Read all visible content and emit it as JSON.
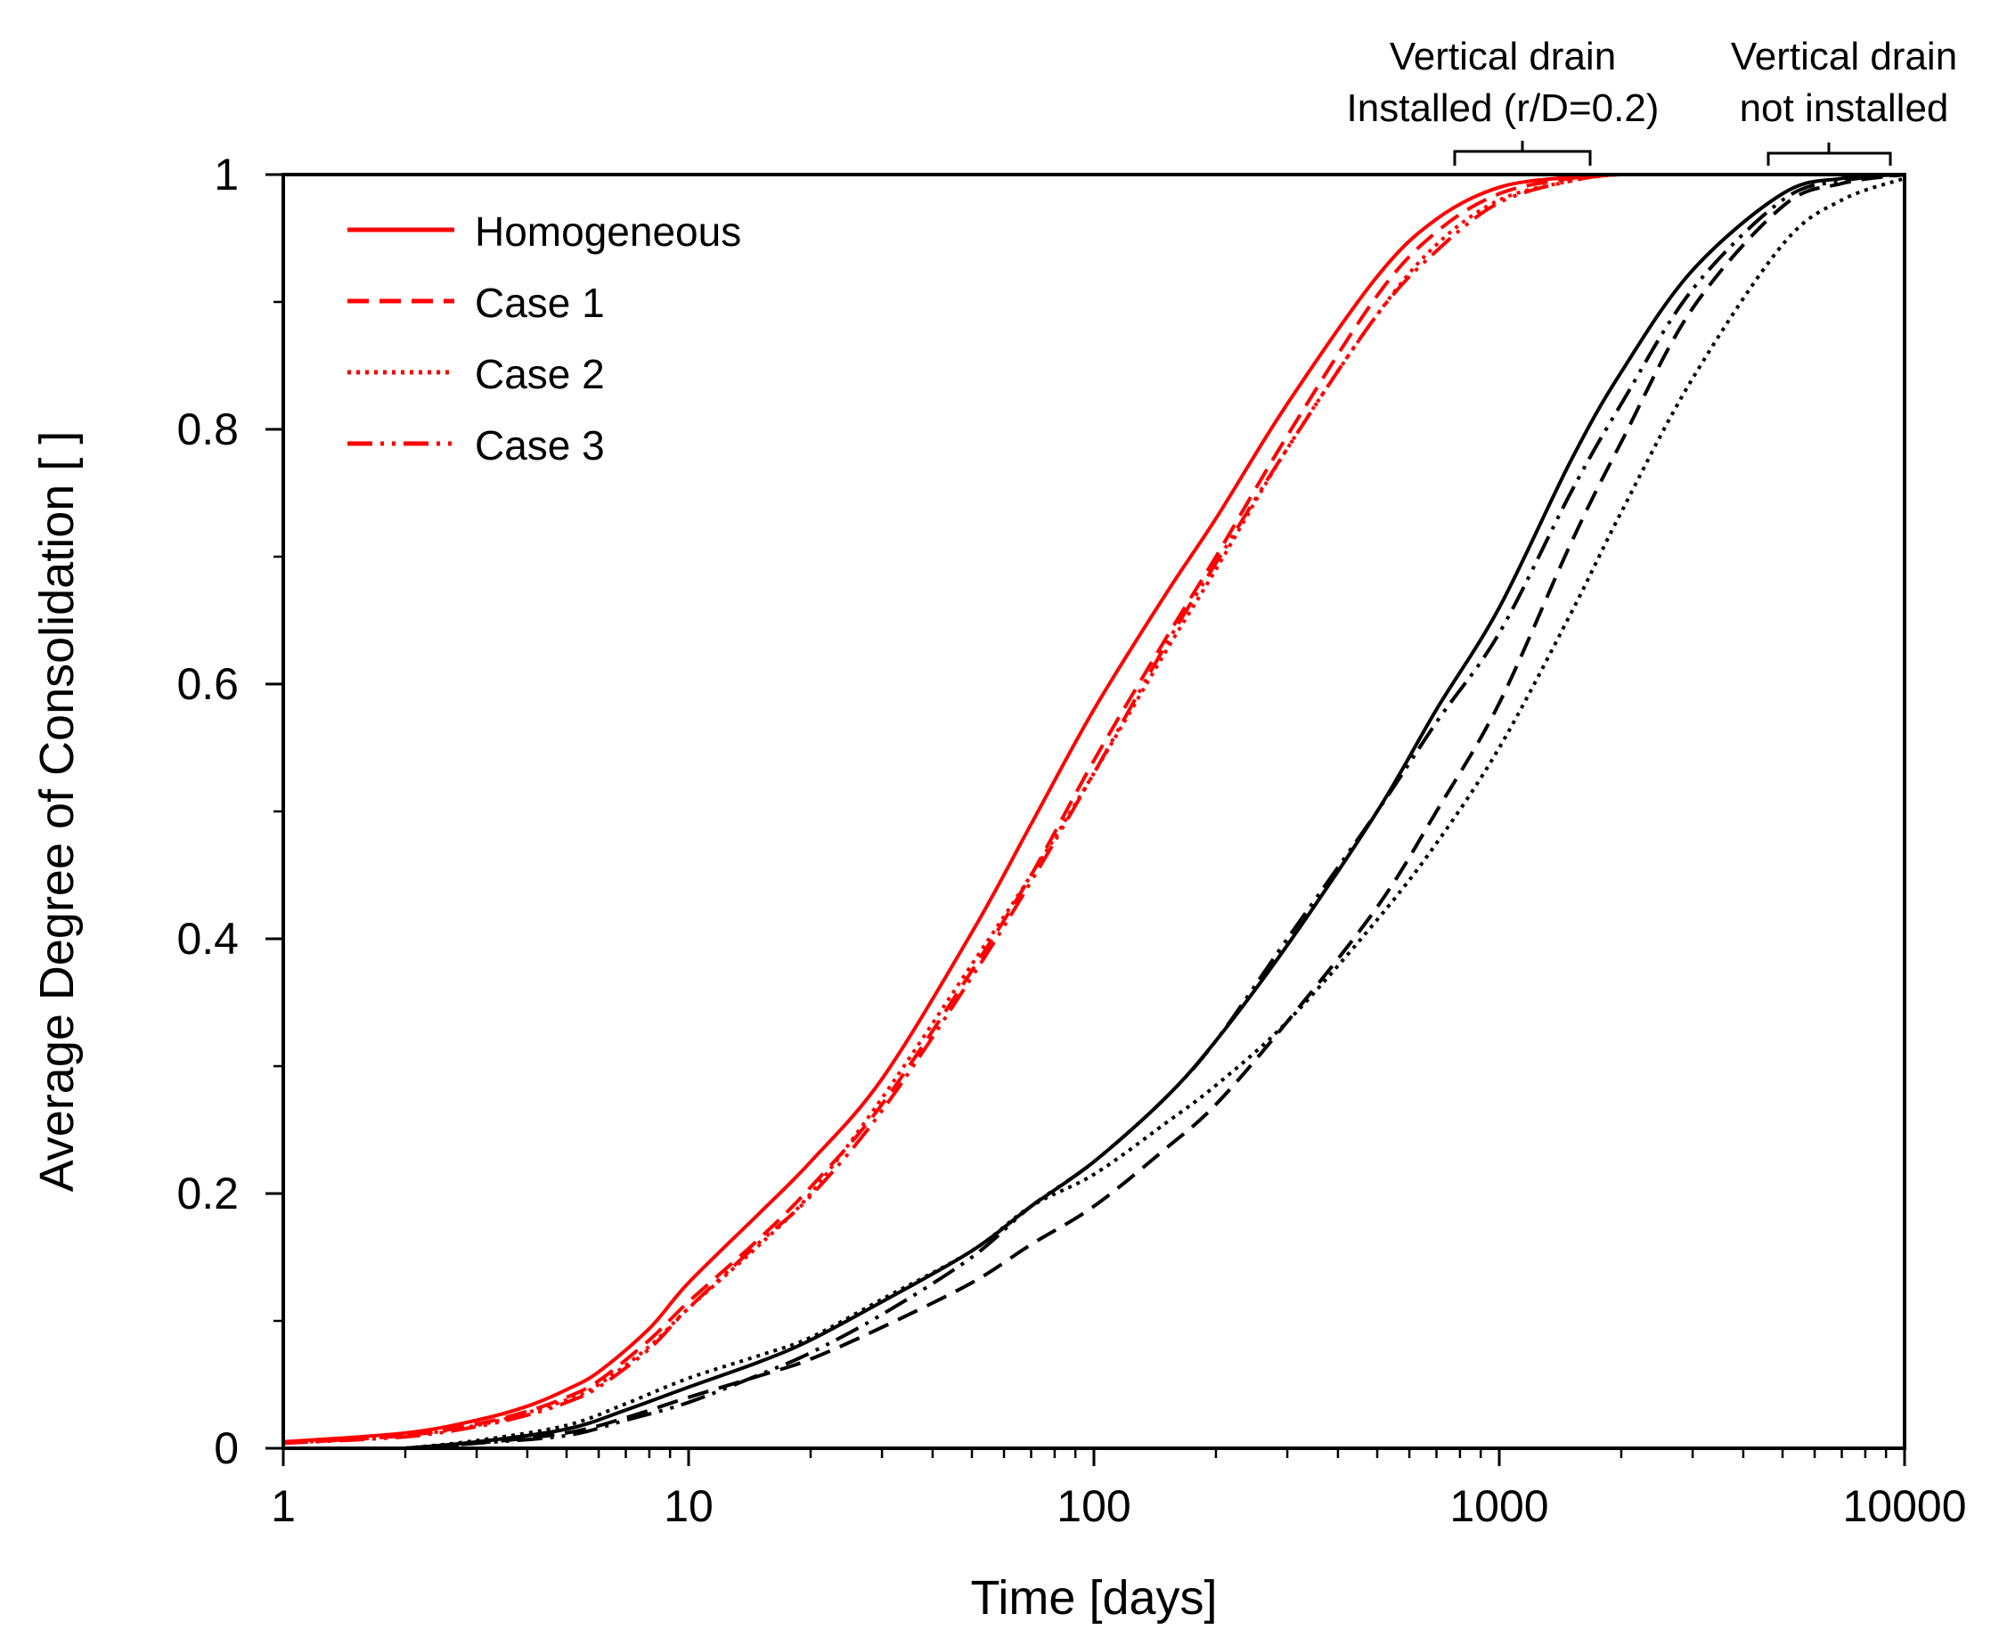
{
  "chart_data": {
    "type": "line",
    "title": "",
    "xlabel": "Time [days]",
    "ylabel": "Average Degree of Consolidation [ ]",
    "xscale": "log",
    "xlim": [
      1,
      10000
    ],
    "ylim": [
      0,
      1
    ],
    "grid": false,
    "legend_position": "top-left",
    "x_ticks": [
      1,
      10,
      100,
      1000,
      10000
    ],
    "x_tick_labels": [
      "1",
      "10",
      "100",
      "1000",
      "10000"
    ],
    "y_ticks": [
      0,
      0.2,
      0.4,
      0.6,
      0.8,
      1
    ],
    "y_tick_labels": [
      "0",
      "0.2",
      "0.4",
      "0.6",
      "0.8",
      "1"
    ],
    "series": [
      {
        "name": "Homogeneous",
        "group": "Vertical drain installed",
        "color": "#ff0000",
        "dash": "solid",
        "x": [
          1,
          2,
          3,
          4,
          5,
          6,
          8,
          10,
          15,
          20,
          30,
          50,
          70,
          100,
          150,
          200,
          300,
          500,
          700,
          1000,
          1500,
          2000,
          3000
        ],
        "y": [
          0.005,
          0.012,
          0.022,
          0.033,
          0.046,
          0.06,
          0.094,
          0.13,
          0.185,
          0.225,
          0.29,
          0.405,
          0.49,
          0.58,
          0.67,
          0.73,
          0.82,
          0.92,
          0.965,
          0.99,
          0.998,
          1.0,
          1.0
        ]
      },
      {
        "name": "Case 1",
        "group": "Vertical drain installed",
        "color": "#ff0000",
        "dash": "dashed",
        "x": [
          1,
          2,
          3,
          4,
          5,
          6,
          8,
          10,
          15,
          20,
          30,
          50,
          70,
          100,
          150,
          200,
          300,
          500,
          700,
          1000,
          1500,
          2000,
          3000
        ],
        "y": [
          0.004,
          0.01,
          0.019,
          0.029,
          0.04,
          0.053,
          0.085,
          0.115,
          0.165,
          0.205,
          0.27,
          0.375,
          0.45,
          0.54,
          0.635,
          0.7,
          0.795,
          0.905,
          0.955,
          0.985,
          0.997,
          1.0,
          1.0
        ]
      },
      {
        "name": "Case 2",
        "group": "Vertical drain installed",
        "color": "#ff0000",
        "dash": "dotted",
        "x": [
          1,
          2,
          3,
          4,
          5,
          6,
          8,
          10,
          15,
          20,
          30,
          50,
          70,
          100,
          150,
          200,
          300,
          500,
          700,
          1000,
          1500,
          2000,
          3000
        ],
        "y": [
          0.004,
          0.01,
          0.018,
          0.028,
          0.038,
          0.05,
          0.08,
          0.11,
          0.16,
          0.2,
          0.275,
          0.38,
          0.45,
          0.53,
          0.625,
          0.69,
          0.785,
          0.89,
          0.945,
          0.98,
          0.995,
          1.0,
          1.0
        ]
      },
      {
        "name": "Case 3",
        "group": "Vertical drain installed",
        "color": "#ff0000",
        "dash": "dashdotdot",
        "x": [
          1,
          2,
          3,
          4,
          5,
          6,
          8,
          10,
          15,
          20,
          30,
          50,
          70,
          100,
          150,
          200,
          300,
          500,
          700,
          1000,
          1500,
          2000,
          3000
        ],
        "y": [
          0.004,
          0.009,
          0.017,
          0.026,
          0.036,
          0.048,
          0.078,
          0.11,
          0.162,
          0.198,
          0.265,
          0.37,
          0.445,
          0.53,
          0.63,
          0.695,
          0.785,
          0.89,
          0.94,
          0.978,
          0.995,
          1.0,
          1.0
        ]
      },
      {
        "name": "Homogeneous",
        "group": "Vertical drain not installed",
        "color": "#000000",
        "dash": "solid",
        "x": [
          2,
          3,
          5,
          7,
          10,
          15,
          20,
          30,
          50,
          70,
          100,
          150,
          200,
          300,
          500,
          700,
          1000,
          1500,
          2000,
          3000,
          5000,
          7000,
          10000
        ],
        "y": [
          0.0,
          0.005,
          0.015,
          0.03,
          0.048,
          0.068,
          0.085,
          0.115,
          0.155,
          0.19,
          0.225,
          0.275,
          0.32,
          0.395,
          0.5,
          0.58,
          0.66,
          0.775,
          0.845,
          0.925,
          0.985,
          0.997,
          1.0
        ]
      },
      {
        "name": "Case 1",
        "group": "Vertical drain not installed",
        "color": "#000000",
        "dash": "dashed",
        "x": [
          2,
          3,
          5,
          7,
          10,
          15,
          20,
          30,
          50,
          70,
          100,
          150,
          200,
          300,
          500,
          700,
          1000,
          1500,
          2000,
          3000,
          5000,
          7000,
          10000
        ],
        "y": [
          0.0,
          0.004,
          0.012,
          0.024,
          0.04,
          0.057,
          0.07,
          0.095,
          0.13,
          0.16,
          0.19,
          0.235,
          0.27,
          0.335,
          0.425,
          0.5,
          0.585,
          0.71,
          0.79,
          0.895,
          0.975,
          0.993,
          1.0
        ]
      },
      {
        "name": "Case 2",
        "group": "Vertical drain not installed",
        "color": "#000000",
        "dash": "dotted",
        "x": [
          2,
          3,
          5,
          7,
          10,
          15,
          20,
          30,
          50,
          70,
          100,
          150,
          200,
          300,
          500,
          700,
          1000,
          1500,
          2000,
          3000,
          5000,
          7000,
          10000
        ],
        "y": [
          0.0,
          0.006,
          0.018,
          0.035,
          0.055,
          0.073,
          0.087,
          0.117,
          0.155,
          0.19,
          0.215,
          0.255,
          0.285,
          0.335,
          0.415,
          0.475,
          0.55,
          0.655,
          0.735,
          0.84,
          0.945,
          0.98,
          0.997
        ]
      },
      {
        "name": "Case 3",
        "group": "Vertical drain not installed",
        "color": "#000000",
        "dash": "dashdotdot",
        "x": [
          2,
          3,
          5,
          7,
          10,
          15,
          20,
          30,
          50,
          70,
          100,
          150,
          200,
          300,
          500,
          700,
          1000,
          1500,
          2000,
          3000,
          5000,
          7000,
          10000
        ],
        "y": [
          0.0,
          0.004,
          0.01,
          0.022,
          0.036,
          0.058,
          0.075,
          0.105,
          0.15,
          0.19,
          0.225,
          0.275,
          0.32,
          0.4,
          0.5,
          0.57,
          0.64,
          0.75,
          0.82,
          0.91,
          0.98,
          0.995,
          1.0
        ]
      }
    ],
    "legend": [
      {
        "label": "Homogeneous",
        "color": "#ff0000",
        "dash": "solid"
      },
      {
        "label": "Case 1",
        "color": "#ff0000",
        "dash": "dashed"
      },
      {
        "label": "Case 2",
        "color": "#ff0000",
        "dash": "dotted"
      },
      {
        "label": "Case 3",
        "color": "#ff0000",
        "dash": "dashdotdot"
      }
    ],
    "annotations": [
      {
        "line1": "Vertical drain",
        "line2": "Installed (r/D=0.2)",
        "bracket_x": [
          750,
          1700
        ]
      },
      {
        "line1": "Vertical drain",
        "line2": "not installed",
        "bracket_x": [
          4700,
          9500
        ]
      }
    ]
  }
}
